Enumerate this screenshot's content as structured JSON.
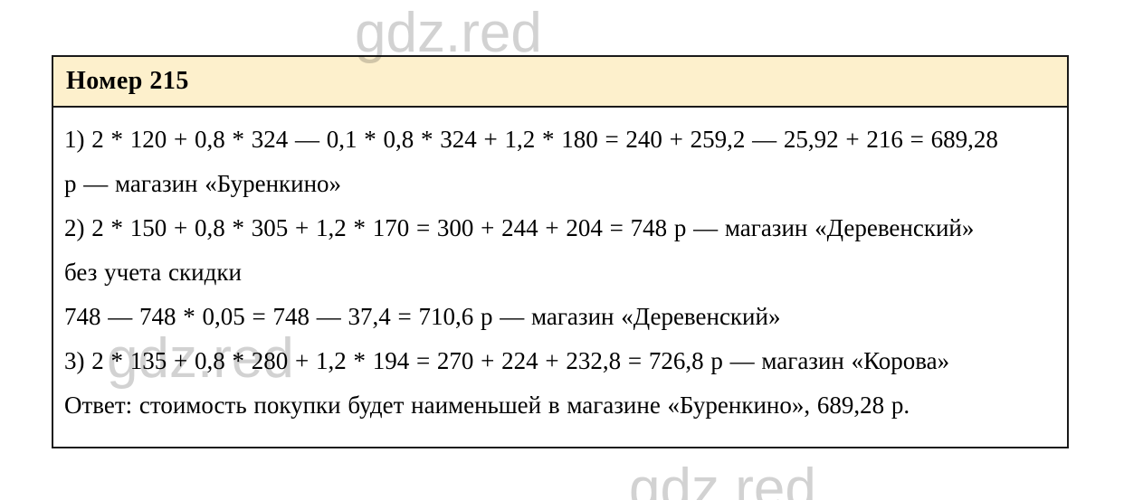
{
  "watermark": {
    "text": "gdz.red"
  },
  "header": {
    "title": "Номер 215"
  },
  "solution": {
    "lines": [
      "1) 2 * 120 + 0,8 * 324 — 0,1 * 0,8 * 324 + 1,2 * 180 = 240 + 259,2 — 25,92 + 216 = 689,28",
      "р — магазин «Буренкино»",
      "2) 2 * 150 + 0,8 * 305 + 1,2 * 170 = 300 + 244 + 204 = 748 р — магазин «Деревенский»",
      "без учета скидки",
      "748 — 748 * 0,05 = 748 — 37,4 = 710,6 р — магазин «Деревенский»",
      "3) 2 * 135 + 0,8 * 280 + 1,2 * 194 = 270 + 224 + 232,8 = 726,8 р — магазин «Корова»",
      "Ответ: стоимость покупки будет наименьшей в магазине «Буренкино», 689,28 р."
    ]
  },
  "colors": {
    "header_bg": "#FDF0CC",
    "border": "#1A1A1A",
    "watermark": "#D2D2D2",
    "text": "#000000"
  }
}
